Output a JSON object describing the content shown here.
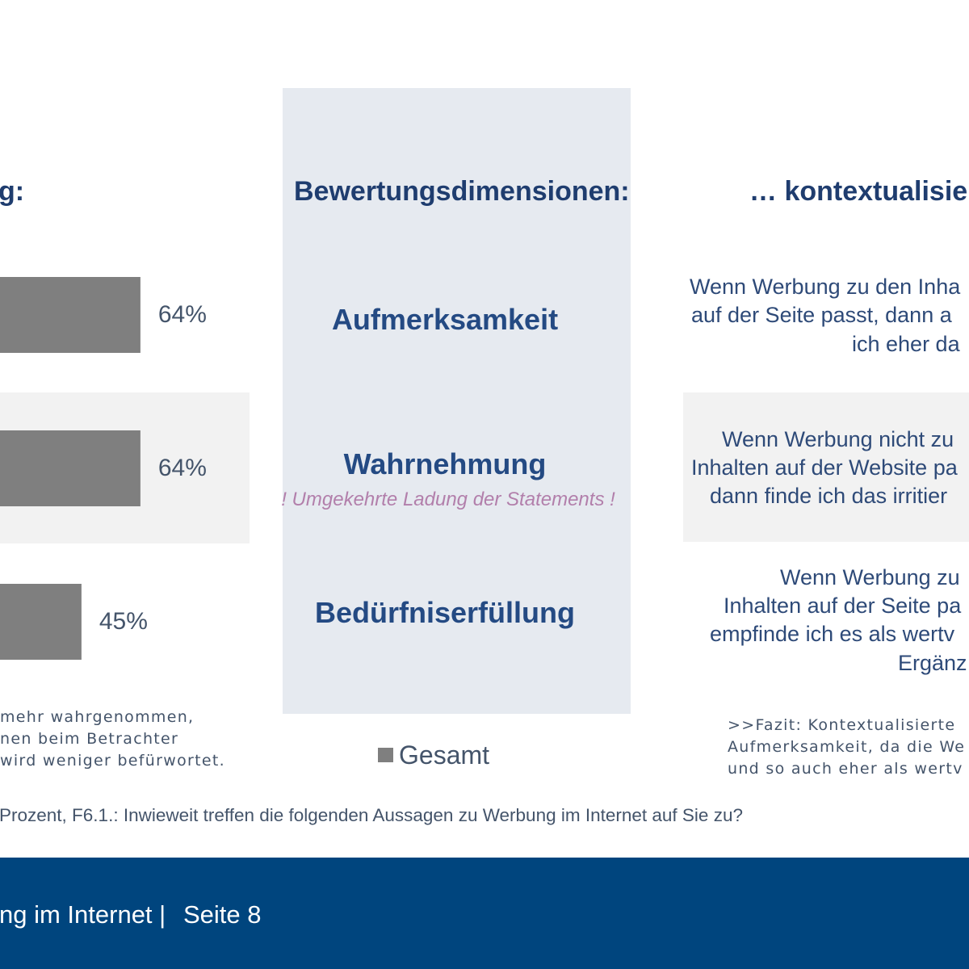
{
  "colors": {
    "heading": "#1f3d6f",
    "dimension": "#244a83",
    "body": "#2e4a78",
    "muted": "#44546a",
    "note": "#b27fab",
    "panel": "#e6eaf0",
    "band": "#f2f2f2",
    "footer": "#00457e"
  },
  "left": {
    "heading": "g:",
    "notes": [
      "mehr wahrgenommen,",
      "nen beim Betrachter",
      "wird weniger befürwortet."
    ]
  },
  "middle": {
    "heading": "Bewertungsdimensionen:",
    "reversed_note": "! Umgekehrte Ladung der Statements !"
  },
  "right": {
    "heading": "… kontextualisier",
    "statements": [
      {
        "lines": [
          "Wenn Werbung zu den Inha",
          "auf der Seite passt, dann a",
          "ich eher da"
        ]
      },
      {
        "lines": [
          "Wenn Werbung nicht zu",
          "Inhalten auf der Website pa",
          "dann finde ich das irritier"
        ]
      },
      {
        "lines": [
          "Wenn Werbung zu",
          "Inhalten auf der Seite pa",
          "empfinde ich es als wertv",
          "Ergänz"
        ]
      }
    ],
    "conclusion": [
      ">>Fazit: Kontextualisierte",
      "Aufmerksamkeit, da die We",
      "und so auch eher als wertv"
    ]
  },
  "footnote": "Prozent, F6.1.: Inwieweit treffen die folgenden Aussagen zu Werbung im Internet auf Sie zu?",
  "footer": {
    "title": "ng im Internet |",
    "page": "Seite 8"
  },
  "chart_data": {
    "type": "bar",
    "orientation": "horizontal",
    "categories": [
      "Aufmerksamkeit",
      "Wahrnehmung",
      "Bedürfniserfüllung"
    ],
    "series": [
      {
        "name": "Gesamt",
        "values": [
          64,
          64,
          45
        ],
        "color": "#7f7f7f"
      }
    ],
    "value_labels": [
      "64%",
      "64%",
      "45%"
    ],
    "grid": false,
    "legend": "bottom"
  }
}
